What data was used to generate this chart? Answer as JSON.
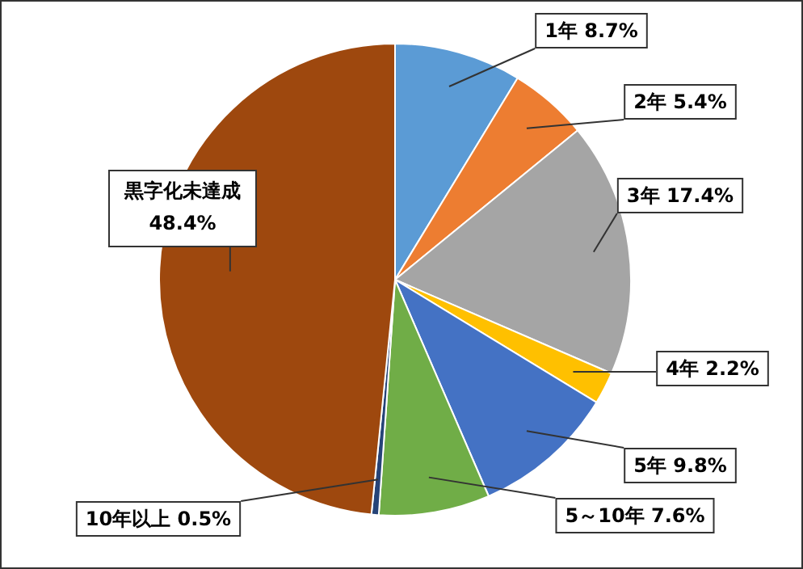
{
  "chart_data": {
    "type": "pie",
    "categories": [
      "1年",
      "2年",
      "3年",
      "4年",
      "5年",
      "5～10年",
      "10年以上",
      "黒字化未達成"
    ],
    "values": [
      8.7,
      5.4,
      17.4,
      2.2,
      9.8,
      7.6,
      0.5,
      48.4
    ],
    "value_labels": [
      "8.7%",
      "5.4%",
      "17.4%",
      "2.2%",
      "9.8%",
      "7.6%",
      "0.5%",
      "48.4%"
    ],
    "colors": [
      "#5b9bd5",
      "#ed7d31",
      "#a5a5a5",
      "#ffc000",
      "#4472c4",
      "#70ad47",
      "#264478",
      "#9e480e"
    ],
    "legend": false
  }
}
